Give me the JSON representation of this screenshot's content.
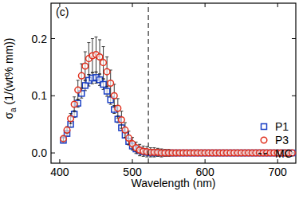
{
  "chart_data": {
    "type": "scatter",
    "title": "(c)",
    "x_label": "Wavelength (nm)",
    "y_label": "σa (1/(wt% mm))",
    "x": [
      405,
      410,
      415,
      420,
      425,
      430,
      435,
      440,
      445,
      450,
      455,
      460,
      465,
      470,
      475,
      480,
      485,
      490,
      495,
      500,
      505,
      510,
      515,
      520,
      525,
      530,
      535,
      540,
      545,
      550,
      555,
      560,
      565,
      570,
      575,
      580,
      585,
      590,
      595,
      600,
      605,
      610,
      615,
      620,
      625,
      630,
      635,
      640,
      645,
      650,
      655,
      660,
      665,
      670,
      675,
      680,
      685,
      690,
      695,
      700,
      705,
      710,
      715,
      720
    ],
    "series": [
      {
        "name": "P1",
        "color": "#1a3fc4",
        "marker": "square",
        "values": [
          0.022,
          0.034,
          0.05,
          0.068,
          0.087,
          0.104,
          0.118,
          0.127,
          0.131,
          0.132,
          0.128,
          0.12,
          0.108,
          0.093,
          0.076,
          0.059,
          0.044,
          0.031,
          0.02,
          0.012,
          0.007,
          0.004,
          0.002,
          0.001,
          0,
          0,
          0,
          0,
          0,
          0,
          0,
          0,
          0,
          0,
          0,
          0,
          0,
          0,
          0,
          0,
          0,
          0,
          0,
          0,
          0,
          0,
          0,
          0,
          0,
          0,
          0,
          0,
          0,
          0,
          0,
          0,
          0,
          0,
          0,
          0,
          0,
          0,
          0,
          0
        ],
        "errors": [
          0.003,
          0.004,
          0.005,
          0.006,
          0.007,
          0.008,
          0.009,
          0.01,
          0.01,
          0.01,
          0.01,
          0.009,
          0.009,
          0.008,
          0.007,
          0.006,
          0.005,
          0.004,
          0.004,
          0.003,
          0.003,
          0.003,
          0.002,
          0.002,
          0.002,
          0,
          0,
          0,
          0,
          0,
          0,
          0,
          0,
          0,
          0,
          0,
          0,
          0,
          0,
          0,
          0,
          0,
          0,
          0,
          0,
          0,
          0,
          0,
          0,
          0,
          0,
          0,
          0,
          0,
          0,
          0,
          0,
          0,
          0,
          0,
          0,
          0,
          0,
          0
        ]
      },
      {
        "name": "P3",
        "color": "#e0301e",
        "marker": "circle",
        "values": [
          0.025,
          0.04,
          0.06,
          0.085,
          0.11,
          0.135,
          0.152,
          0.165,
          0.17,
          0.172,
          0.168,
          0.158,
          0.142,
          0.122,
          0.1,
          0.078,
          0.058,
          0.04,
          0.026,
          0.016,
          0.009,
          0.005,
          0.003,
          0.002,
          0.001,
          0.001,
          0.001,
          0,
          0,
          0,
          0,
          0,
          0,
          0,
          0,
          0,
          0,
          0,
          0,
          0,
          0,
          0,
          0,
          0,
          0,
          0,
          0,
          0,
          0,
          0,
          0,
          0,
          0,
          0,
          0,
          0,
          0,
          0,
          0,
          0,
          0,
          0,
          0,
          0
        ],
        "errors": [
          0.004,
          0.006,
          0.009,
          0.013,
          0.017,
          0.021,
          0.025,
          0.028,
          0.03,
          0.031,
          0.03,
          0.028,
          0.026,
          0.023,
          0.02,
          0.017,
          0.015,
          0.013,
          0.012,
          0.011,
          0.01,
          0.01,
          0.009,
          0.009,
          0.008,
          0.008,
          0.007,
          0.007,
          0.006,
          0.006,
          0.005,
          0.005,
          0.004,
          0.004,
          0.003,
          0.003,
          0.003,
          0.002,
          0.002,
          0.002,
          0,
          0,
          0,
          0,
          0,
          0,
          0,
          0,
          0,
          0,
          0,
          0,
          0,
          0,
          0,
          0,
          0,
          0,
          0,
          0,
          0,
          0,
          0,
          0
        ]
      },
      {
        "name": "MC",
        "type": "vline",
        "x": 522,
        "color": "#000000",
        "line_style": "dashed"
      }
    ],
    "xlim": [
      388,
      725
    ],
    "ylim": [
      -0.018,
      0.262
    ],
    "xticks": [
      400,
      500,
      600,
      700
    ],
    "yticks": [
      {
        "value": 0,
        "label": "0.0"
      },
      0.1,
      0.2
    ],
    "legend": "lower right"
  }
}
